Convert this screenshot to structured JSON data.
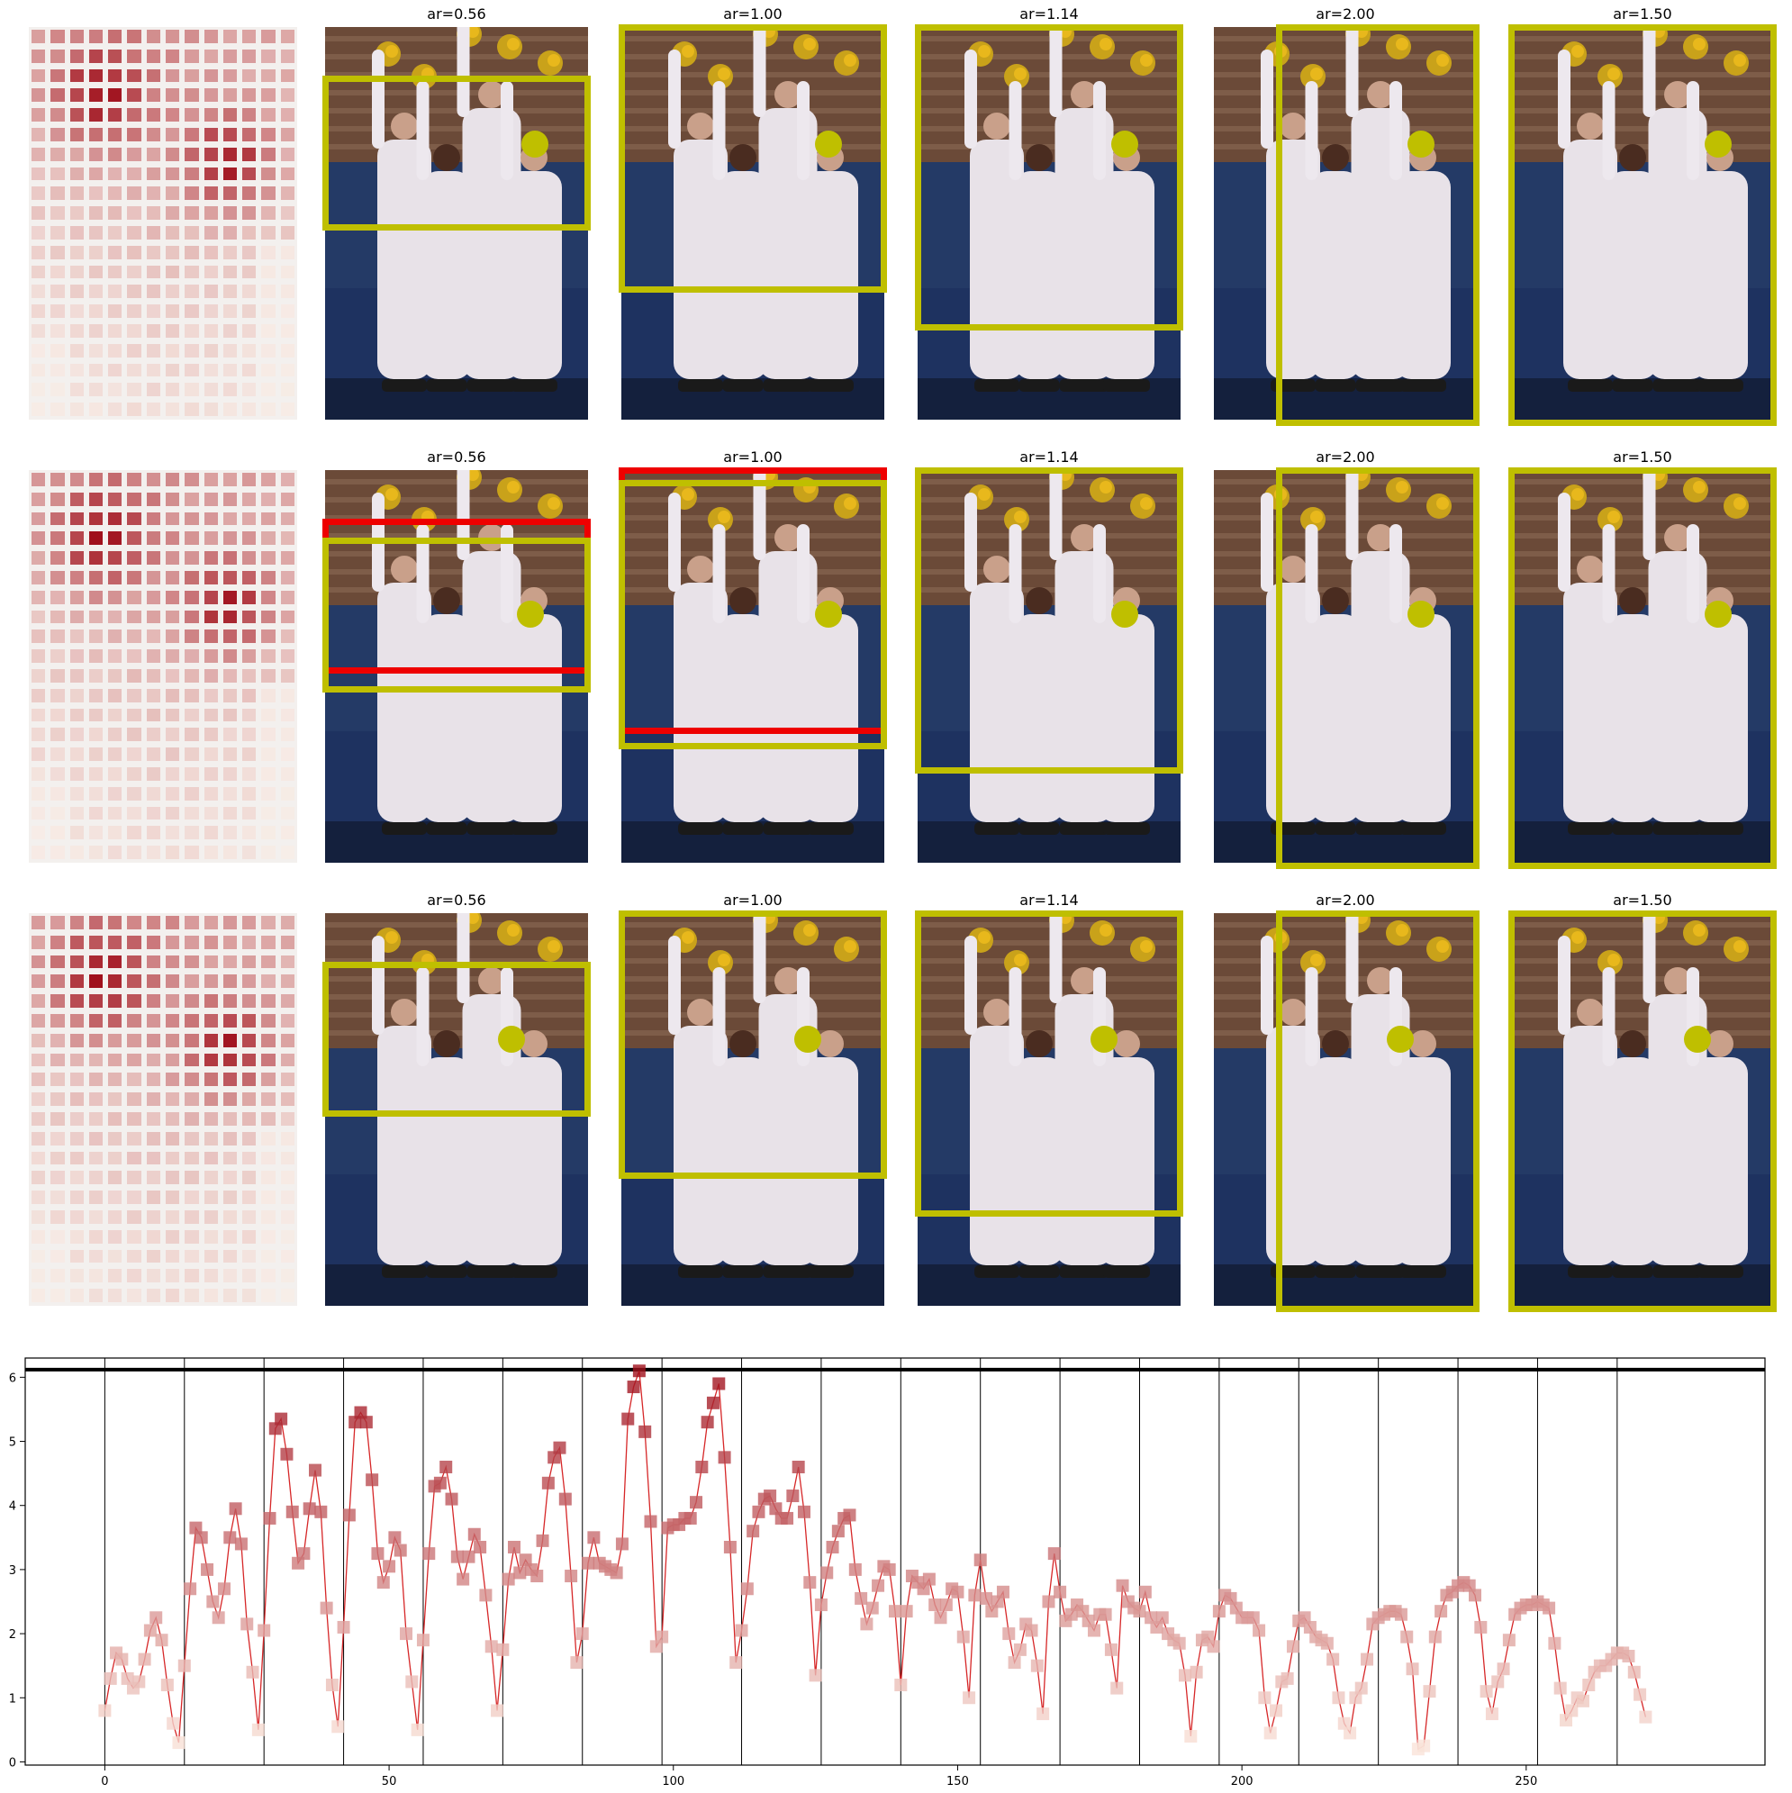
{
  "panel_titles": [
    "ar=0.56",
    "ar=1.00",
    "ar=1.14",
    "ar=2.00",
    "ar=1.50"
  ],
  "colors": {
    "best_box": "#bfbf00",
    "alt_box": "#ee0000",
    "marker_dot": "#bfbf00",
    "heat_low": "#fdebe0",
    "heat_high": "#a0101c",
    "line": "#d62728"
  },
  "chart_data": {
    "type": "line",
    "title": "",
    "xlabel": "",
    "ylabel": "",
    "xlim": [
      -14,
      292
    ],
    "ylim": [
      -0.05,
      6.3
    ],
    "xticks": [
      0,
      50,
      100,
      150,
      200,
      250
    ],
    "yticks": [
      0,
      1,
      2,
      3,
      4,
      5,
      6
    ],
    "hline": 6.12,
    "vlines": [
      0,
      14,
      28,
      42,
      56,
      70,
      84,
      98,
      112,
      126,
      140,
      154,
      168,
      182,
      196,
      210,
      224,
      238,
      252,
      266
    ],
    "grid": false,
    "series": [
      {
        "values": [
          0.8,
          1.3,
          1.7,
          1.6,
          1.3,
          1.15,
          1.25,
          1.6,
          2.05,
          2.25,
          1.9,
          1.2,
          0.6,
          0.3,
          1.5,
          2.7,
          3.65,
          3.5,
          3.0,
          2.5,
          2.25,
          2.7,
          3.5,
          3.95,
          3.4,
          2.15,
          1.4,
          0.5,
          2.05,
          3.8,
          5.2,
          5.35,
          4.8,
          3.9,
          3.1,
          3.25,
          3.95,
          4.55,
          3.9,
          2.4,
          1.2,
          0.55,
          2.1,
          3.85,
          5.3,
          5.45,
          5.3,
          4.4,
          3.25,
          2.8,
          3.05,
          3.5,
          3.3,
          2.0,
          1.25,
          0.5,
          1.9,
          3.25,
          4.3,
          4.35,
          4.6,
          4.1,
          3.2,
          2.85,
          3.2,
          3.55,
          3.35,
          2.6,
          1.8,
          0.8,
          1.75,
          2.85,
          3.35,
          2.95,
          3.15,
          3.0,
          2.9,
          3.45,
          4.35,
          4.75,
          4.9,
          4.1,
          2.9,
          1.55,
          2.0,
          3.1,
          3.5,
          3.1,
          3.05,
          3.0,
          2.95,
          3.4,
          5.35,
          5.85,
          6.1,
          5.15,
          3.75,
          1.8,
          1.95,
          3.65,
          3.7,
          3.7,
          3.8,
          3.8,
          4.05,
          4.6,
          5.3,
          5.6,
          5.9,
          4.75,
          3.35,
          1.55,
          2.05,
          2.7,
          3.6,
          3.9,
          4.1,
          4.15,
          3.95,
          3.8,
          3.8,
          4.15,
          4.6,
          3.9,
          2.8,
          1.35,
          2.45,
          2.95,
          3.35,
          3.6,
          3.8,
          3.85,
          3.0,
          2.55,
          2.15,
          2.4,
          2.75,
          3.05,
          3.0,
          2.35,
          1.2,
          2.35,
          2.9,
          2.8,
          2.7,
          2.85,
          2.45,
          2.25,
          2.45,
          2.7,
          2.65,
          1.95,
          1.0,
          2.6,
          3.15,
          2.55,
          2.35,
          2.5,
          2.65,
          2.0,
          1.55,
          1.75,
          2.15,
          2.05,
          1.5,
          0.75,
          2.5,
          3.25,
          2.65,
          2.2,
          2.3,
          2.45,
          2.35,
          2.2,
          2.05,
          2.3,
          2.3,
          1.75,
          1.15,
          2.75,
          2.5,
          2.4,
          2.35,
          2.65,
          2.25,
          2.1,
          2.25,
          2.0,
          1.9,
          1.85,
          1.35,
          0.4,
          1.4,
          1.9,
          1.95,
          1.8,
          2.35,
          2.6,
          2.55,
          2.4,
          2.25,
          2.25,
          2.25,
          2.05,
          1.0,
          0.45,
          0.8,
          1.25,
          1.3,
          1.8,
          2.2,
          2.25,
          2.1,
          1.95,
          1.9,
          1.85,
          1.6,
          1.0,
          0.6,
          0.45,
          1.0,
          1.15,
          1.6,
          2.15,
          2.25,
          2.3,
          2.35,
          2.35,
          2.3,
          1.95,
          1.45,
          0.2,
          0.25,
          1.1,
          1.95,
          2.35,
          2.6,
          2.65,
          2.75,
          2.8,
          2.75,
          2.6,
          2.1,
          1.1,
          0.75,
          1.25,
          1.45,
          1.9,
          2.3,
          2.4,
          2.45,
          2.45,
          2.5,
          2.45,
          2.4,
          1.85,
          1.15,
          0.65,
          0.8,
          1.0,
          0.95,
          1.2,
          1.4,
          1.5,
          1.5,
          1.6,
          1.7,
          1.7,
          1.65,
          1.4,
          1.05,
          0.7
        ]
      }
    ]
  }
}
